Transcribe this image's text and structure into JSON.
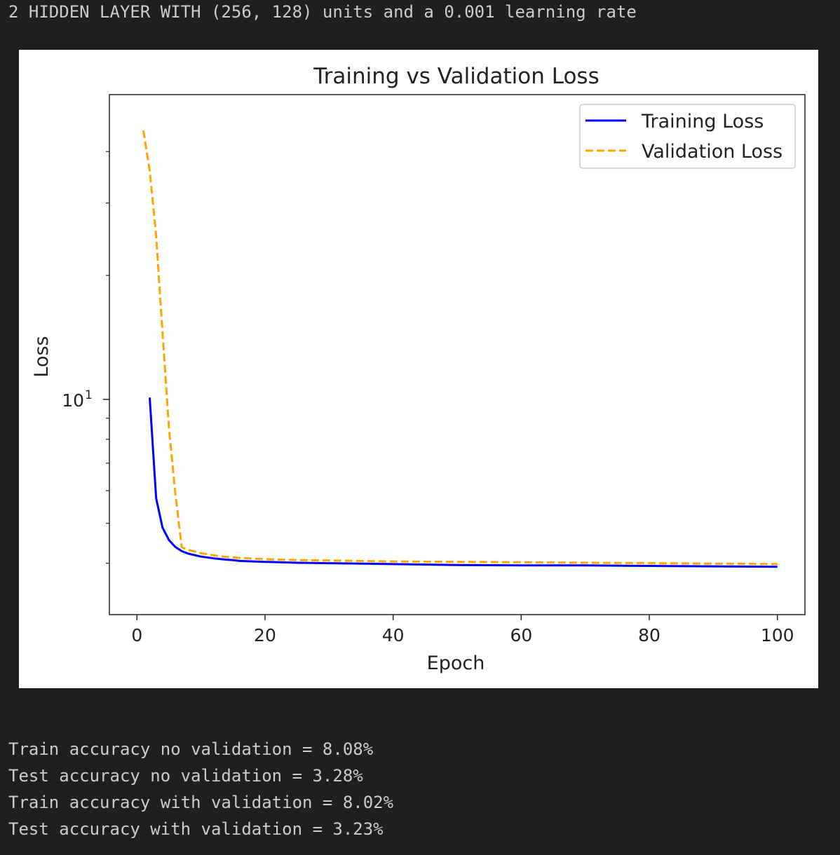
{
  "output": {
    "header": "2 HIDDEN LAYER WITH (256, 128) units and a 0.001 learning rate",
    "accuracy_lines": [
      "Train accuracy no validation = 8.08%",
      "Test accuracy no validation = 3.28%",
      "Train accuracy with validation = 8.02%",
      "Test accuracy with validation = 3.23%"
    ]
  },
  "chart_data": {
    "type": "line",
    "title": "Training vs Validation Loss",
    "xlabel": "Epoch",
    "ylabel": "Loss",
    "yscale": "log",
    "xlim": [
      -4.3,
      104.3
    ],
    "ylim": [
      3.0,
      55.0
    ],
    "xticks": [
      0,
      20,
      40,
      60,
      80,
      100
    ],
    "yticks_major": [
      {
        "value": 10,
        "label_base": "10",
        "label_exp": "1"
      }
    ],
    "yticks_minor": [
      4,
      5,
      6,
      7,
      8,
      9,
      20,
      30,
      40
    ],
    "grid": false,
    "legend_position": "top-right",
    "series": [
      {
        "name": "Training Loss",
        "color": "#0000ff",
        "style": "solid",
        "x": [
          2,
          3,
          4,
          5,
          6,
          7,
          8,
          10,
          12,
          14,
          15,
          16,
          20,
          25,
          30,
          40,
          50,
          60,
          70,
          80,
          90,
          100
        ],
        "y": [
          10.1,
          5.75,
          4.88,
          4.55,
          4.38,
          4.28,
          4.22,
          4.15,
          4.11,
          4.08,
          4.07,
          4.05,
          4.03,
          4.01,
          4.0,
          3.98,
          3.96,
          3.95,
          3.95,
          3.94,
          3.93,
          3.92
        ]
      },
      {
        "name": "Validation Loss",
        "color": "#ffa500",
        "style": "dashed",
        "x": [
          1,
          2,
          3,
          4,
          5,
          6,
          7,
          8,
          10,
          12,
          14,
          16,
          20,
          25,
          30,
          40,
          50,
          60,
          70,
          80,
          90,
          100
        ],
        "y": [
          45.0,
          36.0,
          25.0,
          14.5,
          8.5,
          5.9,
          4.37,
          4.31,
          4.23,
          4.18,
          4.14,
          4.12,
          4.09,
          4.07,
          4.06,
          4.04,
          4.03,
          4.02,
          4.01,
          4.0,
          3.99,
          3.98
        ]
      }
    ]
  }
}
